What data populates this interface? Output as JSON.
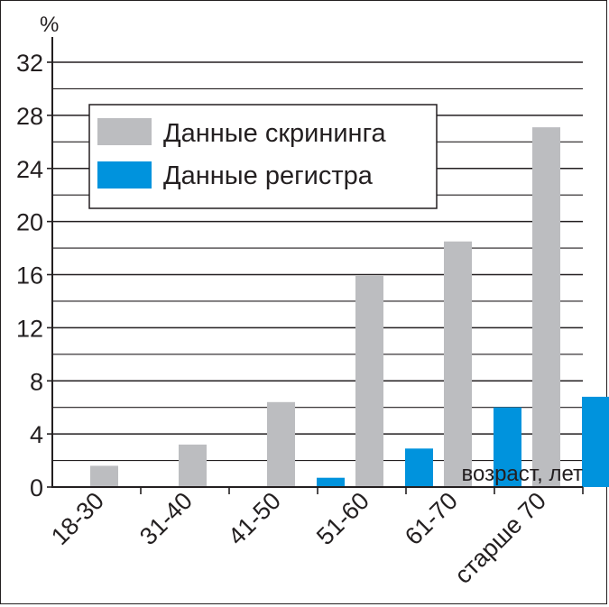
{
  "chart_data": {
    "type": "bar",
    "ylabel": "%",
    "xlabel": "возраст, лет",
    "ylim": [
      0,
      32
    ],
    "yticks": [
      0,
      4,
      8,
      12,
      16,
      20,
      24,
      28,
      32
    ],
    "grid": true,
    "legend_position": "top-left",
    "categories": [
      "18-30",
      "31-40",
      "41-50",
      "51-60",
      "61-70",
      "старше 70"
    ],
    "series": [
      {
        "name": "Данные скрининга",
        "color": "#bcbdc0",
        "values": [
          1.6,
          3.2,
          6.4,
          15.9,
          18.5,
          27.1
        ]
      },
      {
        "name": "Данные регистра",
        "color": "#0093dd",
        "values": [
          0,
          0,
          0.7,
          2.9,
          6.0,
          6.8
        ]
      }
    ]
  }
}
